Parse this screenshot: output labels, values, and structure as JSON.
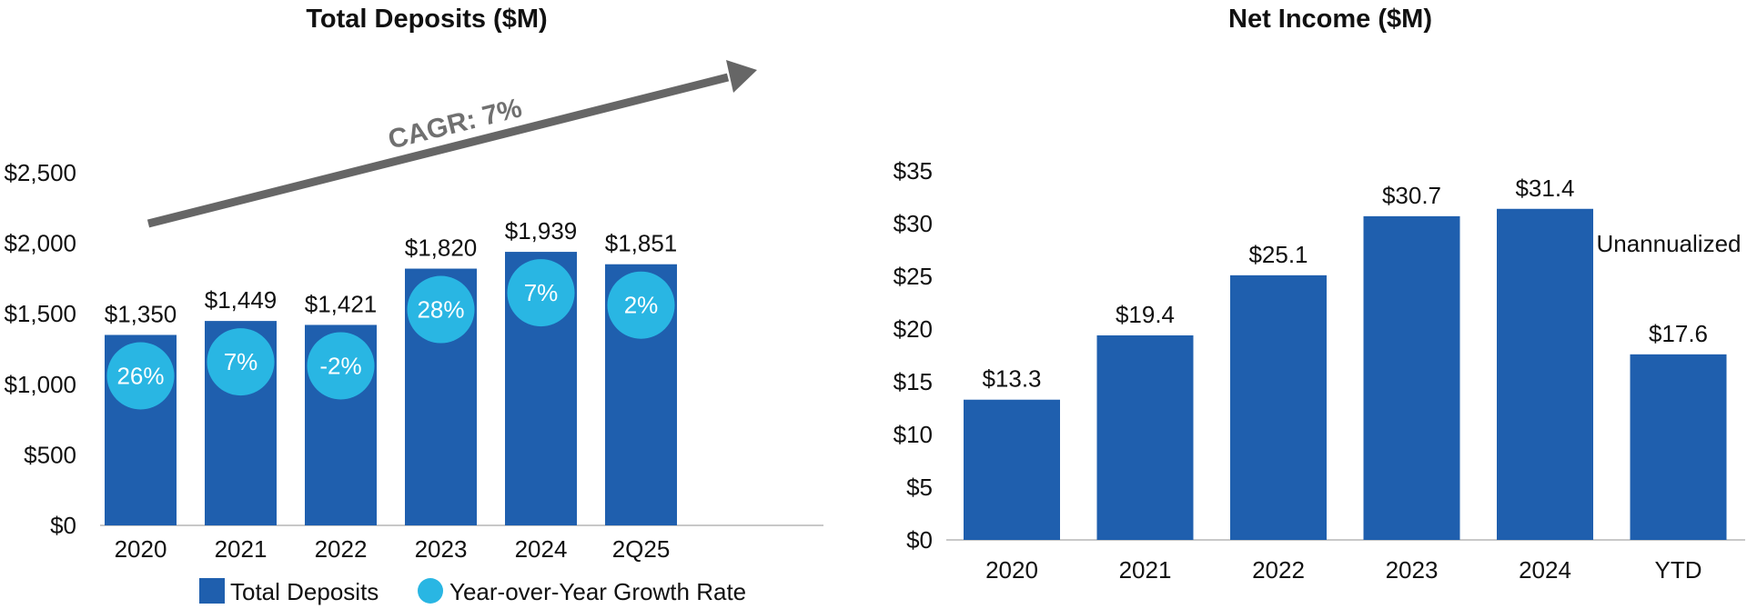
{
  "chart_data": [
    {
      "type": "bar",
      "title": "Total Deposits ($M)",
      "categories": [
        "2020",
        "2021",
        "2022",
        "2023",
        "2024",
        "2Q25"
      ],
      "series": [
        {
          "name": "Total Deposits",
          "values": [
            1350,
            1449,
            1421,
            1820,
            1939,
            1851
          ],
          "color": "#1F5FAE"
        }
      ],
      "data_labels": [
        "$1,350",
        "$1,449",
        "$1,421",
        "$1,820",
        "$1,939",
        "$1,851"
      ],
      "growth_rate": {
        "name": "Year-over-Year Growth Rate",
        "values": [
          26,
          7,
          -2,
          28,
          7,
          2
        ],
        "labels": [
          "26%",
          "7%",
          "-2%",
          "28%",
          "7%",
          "2%"
        ],
        "color": "#29B6E3"
      },
      "yticks": [
        "$0",
        "$500",
        "$1,000",
        "$1,500",
        "$2,000",
        "$2,500"
      ],
      "ytick_values": [
        0,
        500,
        1000,
        1500,
        2000,
        2500
      ],
      "ylim": [
        0,
        2500
      ],
      "annotation": "CAGR: 7%",
      "legend_position": "bottom",
      "grid": false
    },
    {
      "type": "bar",
      "title": "Net Income ($M)",
      "categories": [
        "2020",
        "2021",
        "2022",
        "2023",
        "2024",
        "YTD"
      ],
      "series": [
        {
          "name": "Net Income",
          "values": [
            13.3,
            19.4,
            25.1,
            30.7,
            31.4,
            17.6
          ],
          "color": "#1F5FAE"
        }
      ],
      "data_labels": [
        "$13.3",
        "$19.4",
        "$25.1",
        "$30.7",
        "$31.4",
        "$17.6"
      ],
      "annotation": "Unannualized",
      "yticks": [
        "$0",
        "$5",
        "$10",
        "$15",
        "$20",
        "$25",
        "$30",
        "$35"
      ],
      "ytick_values": [
        0,
        5,
        10,
        15,
        20,
        25,
        30,
        35
      ],
      "ylim": [
        0,
        35
      ],
      "grid": false
    }
  ]
}
